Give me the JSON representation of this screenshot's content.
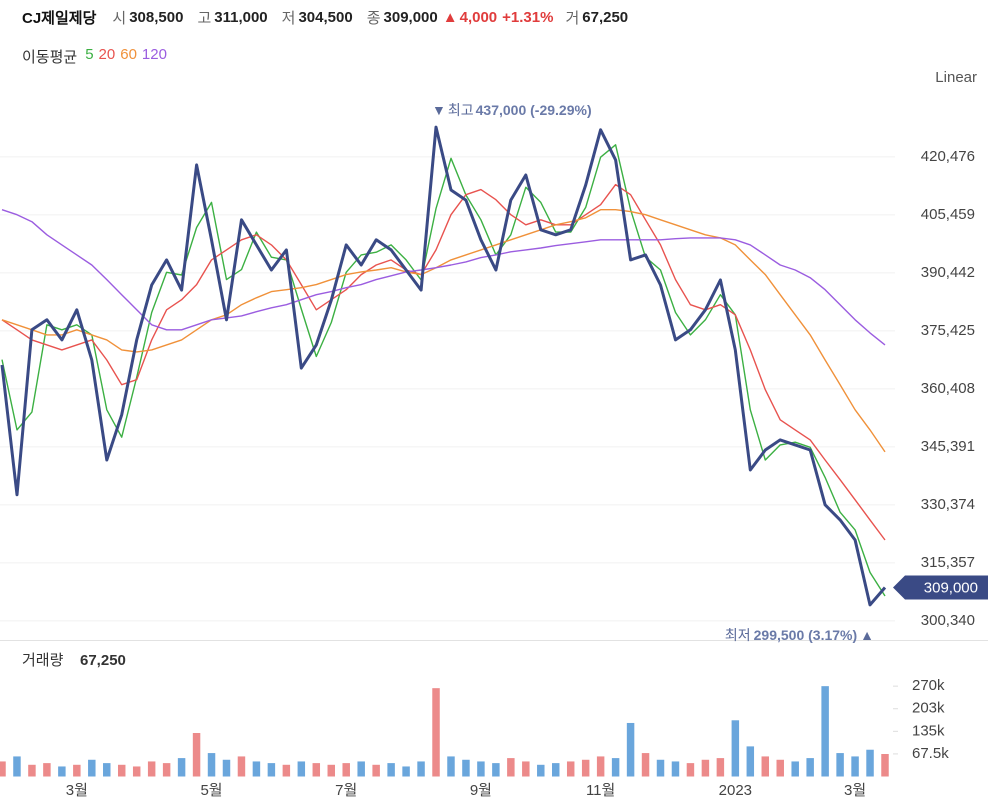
{
  "header": {
    "name": "CJ제일제당",
    "open_label": "시",
    "open": "308,500",
    "high_label": "고",
    "high": "311,000",
    "low_label": "저",
    "low": "304,500",
    "close_label": "종",
    "close": "309,000",
    "change_mark": "▲",
    "change": "4,000",
    "change_pct": "+1.31%",
    "volume_label": "거",
    "volume": "67,250"
  },
  "ma_legend": "이동평균",
  "scale_label": "Linear",
  "chart_data": [
    {
      "type": "line",
      "categories": [
        null,
        null,
        null,
        null,
        null,
        "3월",
        null,
        null,
        null,
        null,
        null,
        null,
        null,
        null,
        "5월",
        null,
        null,
        null,
        null,
        null,
        null,
        null,
        null,
        "7월",
        null,
        null,
        null,
        null,
        null,
        null,
        null,
        null,
        "9월",
        null,
        null,
        null,
        null,
        null,
        null,
        null,
        "11월",
        null,
        null,
        null,
        null,
        null,
        null,
        null,
        null,
        "2023",
        null,
        null,
        null,
        null,
        null,
        null,
        null,
        "3월",
        null,
        null
      ],
      "series": [
        {
          "color": "#3a4a85",
          "values": [
            366600,
            333000,
            375700,
            378300,
            373100,
            380900,
            367900,
            342000,
            353700,
            373100,
            387300,
            393800,
            386000,
            418400,
            399000,
            378300,
            404200,
            397700,
            391200,
            396400,
            365800,
            371800,
            383400,
            397700,
            392500,
            399000,
            396400,
            391200,
            386000,
            428200,
            411900,
            409300,
            399000,
            391200,
            409300,
            415800,
            401600,
            400300,
            401600,
            413200,
            427500,
            419700,
            393800,
            395100,
            387300,
            373100,
            375700,
            380900,
            388600,
            370500,
            339400,
            344600,
            347200,
            345900,
            344600,
            330400,
            326500,
            321300,
            304500,
            309000
          ]
        },
        {
          "name": "5",
          "color": "#3cb043",
          "values": [
            368000,
            349800,
            354400,
            377000,
            375700,
            377000,
            374400,
            355000,
            347900,
            363400,
            380200,
            390600,
            389900,
            402200,
            408700,
            388700,
            391300,
            401000,
            394500,
            393800,
            381100,
            368800,
            377600,
            390600,
            395100,
            395800,
            397700,
            393800,
            388600,
            407100,
            420100,
            410600,
            404200,
            395100,
            400300,
            412600,
            408700,
            401000,
            401000,
            407400,
            420400,
            423600,
            406800,
            394500,
            391200,
            380200,
            374400,
            378300,
            384800,
            379600,
            355000,
            342000,
            345900,
            346600,
            345300,
            337500,
            328500,
            323900,
            312900,
            306800
          ]
        },
        {
          "name": "20",
          "color": "#e8534f",
          "values": [
            378300,
            375700,
            373100,
            371800,
            370500,
            371800,
            373100,
            367900,
            361500,
            362800,
            373100,
            380900,
            383500,
            387400,
            393800,
            396400,
            399000,
            400300,
            397700,
            393800,
            387400,
            380900,
            383500,
            386100,
            390000,
            392500,
            393800,
            391200,
            390000,
            396400,
            405500,
            410700,
            412000,
            409400,
            405500,
            402900,
            404200,
            402900,
            402900,
            405500,
            408100,
            413300,
            410700,
            404200,
            397700,
            388700,
            382200,
            380900,
            382200,
            379600,
            370500,
            360200,
            352400,
            349800,
            347200,
            342000,
            336900,
            331700,
            326500,
            321300
          ]
        },
        {
          "name": "60",
          "color": "#f0913a",
          "values": [
            378300,
            377000,
            375700,
            374400,
            374400,
            375700,
            374400,
            373100,
            370500,
            370000,
            370500,
            371800,
            373100,
            375700,
            378300,
            379600,
            382200,
            384000,
            385600,
            386100,
            386600,
            387400,
            388700,
            390000,
            390700,
            391200,
            391800,
            390700,
            390000,
            391800,
            393800,
            395100,
            396400,
            397700,
            399000,
            400300,
            401600,
            402900,
            403700,
            404700,
            406800,
            406800,
            406300,
            405500,
            404200,
            402900,
            401600,
            400300,
            399500,
            397700,
            393800,
            390000,
            384800,
            379600,
            374400,
            367900,
            361500,
            355000,
            349800,
            344100
          ]
        },
        {
          "name": "120",
          "color": "#9b5de0",
          "values": [
            406800,
            405500,
            403700,
            400300,
            397700,
            395100,
            392500,
            388700,
            384800,
            380900,
            377000,
            375700,
            375700,
            377000,
            378300,
            378800,
            379300,
            380400,
            381400,
            382200,
            383500,
            384800,
            385600,
            386600,
            387400,
            388700,
            389700,
            390700,
            391200,
            391800,
            392500,
            393300,
            394400,
            395100,
            395900,
            396400,
            396900,
            397500,
            398000,
            398500,
            399000,
            399000,
            399000,
            399000,
            399000,
            399300,
            399500,
            399500,
            399500,
            399000,
            397700,
            395100,
            392500,
            391200,
            389200,
            386100,
            382200,
            378300,
            374900,
            371800
          ]
        }
      ],
      "ylim": [
        295400,
        436500
      ],
      "yticks": [
        {
          "value": 300340,
          "label": "300,340"
        },
        {
          "value": 315357,
          "label": "315,357"
        },
        {
          "value": 330374,
          "label": "330,374"
        },
        {
          "value": 345391,
          "label": "345,391"
        },
        {
          "value": 360408,
          "label": "360,408"
        },
        {
          "value": 375425,
          "label": "375,425"
        },
        {
          "value": 390442,
          "label": "390,442"
        },
        {
          "value": 405459,
          "label": "405,459"
        },
        {
          "value": 420476,
          "label": "420,476"
        }
      ],
      "grid": true,
      "price_tag": {
        "value": 309000,
        "label": "309,000",
        "color": "#3a4a85"
      },
      "high_annotation": {
        "marker": "▼",
        "label": "최고",
        "text": "437,000 (-29.29%)"
      },
      "low_annotation": {
        "label": "최저",
        "text": "299,500 (3.17%)",
        "marker": "▲"
      }
    },
    {
      "type": "bar",
      "title": "거래량",
      "values": [
        45000,
        60000,
        35000,
        40000,
        30000,
        35000,
        50000,
        40000,
        35000,
        30000,
        45000,
        40000,
        55000,
        130000,
        70000,
        50000,
        60000,
        45000,
        40000,
        35000,
        45000,
        40000,
        35000,
        40000,
        45000,
        35000,
        40000,
        30000,
        45000,
        264000,
        60000,
        50000,
        45000,
        40000,
        55000,
        45000,
        35000,
        40000,
        45000,
        50000,
        60000,
        55000,
        160000,
        70000,
        50000,
        45000,
        40000,
        50000,
        55000,
        168000,
        90000,
        60000,
        50000,
        45000,
        55000,
        270000,
        70000,
        60000,
        80000,
        67250
      ],
      "up_color": "#ec8a8a",
      "down_color": "#6aa6dc",
      "ylim": [
        0,
        393000
      ],
      "yticks": [
        {
          "value": 67500,
          "label": "67.5k"
        },
        {
          "value": 135000,
          "label": "135k"
        },
        {
          "value": 202500,
          "label": "203k"
        },
        {
          "value": 270000,
          "label": "270k"
        }
      ]
    }
  ]
}
